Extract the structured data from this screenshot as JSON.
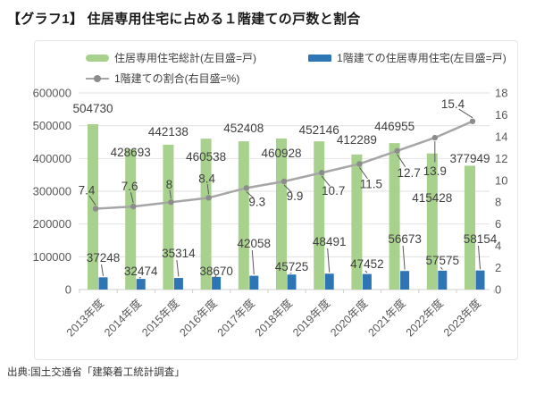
{
  "page": {
    "title": "【グラフ1】 住居専用住宅に占める１階建ての戸数と割合",
    "source": "出典:国土交通省「建築着工統計調査」"
  },
  "chart_data": {
    "type": "bar",
    "title": "【グラフ1】 住居専用住宅に占める１階建ての戸数と割合",
    "categories": [
      "2013年度",
      "2014年度",
      "2015年度",
      "2016年度",
      "2017年度",
      "2018年度",
      "2019年度",
      "2020年度",
      "2021年度",
      "2022年度",
      "2023年度"
    ],
    "series": [
      {
        "name": "住居専用住宅総計(左目盛=戸)",
        "type": "bar",
        "axis": "left",
        "color": "#a9d18e",
        "values": [
          504730,
          428693,
          442138,
          460538,
          452408,
          460928,
          452146,
          412289,
          446955,
          415428,
          377949
        ]
      },
      {
        "name": "1階建ての住居専用住宅(左目盛=戸)",
        "type": "bar",
        "axis": "left",
        "color": "#2e75b6",
        "values": [
          37248,
          32474,
          35314,
          38670,
          42058,
          45725,
          48491,
          47452,
          56673,
          57575,
          58154
        ]
      },
      {
        "name": "1階建ての割合(右目盛=%)",
        "type": "line",
        "axis": "right",
        "color": "#a6a6a6",
        "marker_color": "#8c8c8c",
        "values": [
          7.4,
          7.6,
          8,
          8.4,
          9.3,
          9.9,
          10.7,
          11.5,
          12.7,
          13.9,
          15.4
        ],
        "labels": [
          "7.4",
          "7.6",
          "8",
          "8.4",
          "9.3",
          "9.9",
          "10.7",
          "11.5",
          "12.7",
          "13.9",
          "15.4"
        ]
      }
    ],
    "axes": {
      "left": {
        "min": 0,
        "max": 600000,
        "step": 100000
      },
      "right": {
        "min": 0,
        "max": 18,
        "step": 2
      }
    },
    "grid": true,
    "legend_position": "top",
    "label_color": "#404040",
    "axis_label_color": "#595959",
    "grid_color": "#e2e2e2",
    "axis_line_color": "#cfcfcf"
  }
}
